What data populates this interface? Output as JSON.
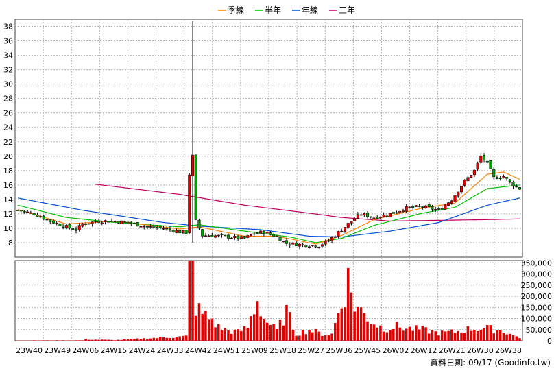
{
  "chart_data": {
    "type": "candlestick-with-volume",
    "legend": [
      {
        "name": "季線",
        "color": "#ff8000"
      },
      {
        "name": "半年",
        "color": "#00c000"
      },
      {
        "name": "年線",
        "color": "#0050d0"
      },
      {
        "name": "三年",
        "color": "#c00060"
      }
    ],
    "legend_position": "top-center",
    "grid": true,
    "price_axis": {
      "ylim": [
        6,
        39
      ],
      "ticks": [
        8,
        10,
        12,
        14,
        16,
        18,
        20,
        22,
        24,
        26,
        28,
        30,
        32,
        34,
        36,
        38
      ],
      "side": "left"
    },
    "volume_axis": {
      "ylim": [
        0,
        360000
      ],
      "ticks": [
        0,
        50000,
        100000,
        150000,
        200000,
        250000,
        300000,
        350000
      ],
      "tick_labels": [
        "0",
        "50,000",
        "100,000",
        "150,000",
        "200,000",
        "250,000",
        "300,000",
        "350,000"
      ],
      "side": "right"
    },
    "x_tick_labels": [
      "23W40",
      "23W49",
      "24W06",
      "24W15",
      "24W24",
      "24W33",
      "24W42",
      "24W51",
      "25W09",
      "25W18",
      "25W27",
      "25W36",
      "25W45",
      "26W02",
      "26W12",
      "26W21",
      "26W30",
      "26W38"
    ],
    "close_anchors": [
      {
        "w": 0,
        "v": 12.5
      },
      {
        "w": 5,
        "v": 12.0
      },
      {
        "w": 10,
        "v": 11.0
      },
      {
        "w": 15,
        "v": 10.2
      },
      {
        "w": 18,
        "v": 9.8
      },
      {
        "w": 20,
        "v": 10.6
      },
      {
        "w": 25,
        "v": 11.0
      },
      {
        "w": 30,
        "v": 11.0
      },
      {
        "w": 35,
        "v": 10.7
      },
      {
        "w": 40,
        "v": 10.2
      },
      {
        "w": 45,
        "v": 10.0
      },
      {
        "w": 50,
        "v": 9.5
      },
      {
        "w": 52,
        "v": 9.4
      },
      {
        "w": 53,
        "v": 17.5
      },
      {
        "w": 54,
        "v": 20.0
      },
      {
        "w": 55,
        "v": 11.0
      },
      {
        "w": 57,
        "v": 9.0
      },
      {
        "w": 60,
        "v": 9.0
      },
      {
        "w": 65,
        "v": 8.8
      },
      {
        "w": 70,
        "v": 8.6
      },
      {
        "w": 73,
        "v": 9.3
      },
      {
        "w": 76,
        "v": 9.5
      },
      {
        "w": 80,
        "v": 8.8
      },
      {
        "w": 83,
        "v": 7.9
      },
      {
        "w": 88,
        "v": 7.7
      },
      {
        "w": 93,
        "v": 7.6
      },
      {
        "w": 96,
        "v": 8.3
      },
      {
        "w": 100,
        "v": 9.8
      },
      {
        "w": 103,
        "v": 11.0
      },
      {
        "w": 106,
        "v": 12.0
      },
      {
        "w": 110,
        "v": 11.5
      },
      {
        "w": 115,
        "v": 12.0
      },
      {
        "w": 120,
        "v": 12.8
      },
      {
        "w": 125,
        "v": 13.0
      },
      {
        "w": 130,
        "v": 12.5
      },
      {
        "w": 134,
        "v": 14.0
      },
      {
        "w": 138,
        "v": 16.5
      },
      {
        "w": 141,
        "v": 18.0
      },
      {
        "w": 143,
        "v": 20.0
      },
      {
        "w": 145,
        "v": 19.0
      },
      {
        "w": 147,
        "v": 17.0
      },
      {
        "w": 150,
        "v": 17.2
      },
      {
        "w": 153,
        "v": 16.0
      },
      {
        "w": 155,
        "v": 15.5
      }
    ],
    "spike": {
      "w": 54,
      "high": 38.7,
      "low": 8.0
    },
    "ma_quarter": [
      [
        0,
        12.6
      ],
      [
        15,
        10.6
      ],
      [
        30,
        11.0
      ],
      [
        50,
        9.9
      ],
      [
        56,
        10.2
      ],
      [
        70,
        8.9
      ],
      [
        80,
        8.9
      ],
      [
        92,
        7.8
      ],
      [
        100,
        9.0
      ],
      [
        110,
        11.2
      ],
      [
        125,
        12.8
      ],
      [
        135,
        13.5
      ],
      [
        145,
        17.5
      ],
      [
        150,
        17.8
      ],
      [
        155,
        16.8
      ]
    ],
    "ma_half": [
      [
        0,
        13.2
      ],
      [
        15,
        11.5
      ],
      [
        30,
        10.8
      ],
      [
        50,
        10.2
      ],
      [
        56,
        10.5
      ],
      [
        70,
        9.6
      ],
      [
        84,
        8.8
      ],
      [
        92,
        8.0
      ],
      [
        100,
        8.6
      ],
      [
        110,
        10.4
      ],
      [
        125,
        12.1
      ],
      [
        135,
        12.9
      ],
      [
        145,
        15.5
      ],
      [
        155,
        16.0
      ]
    ],
    "ma_year": [
      [
        0,
        14.2
      ],
      [
        20,
        12.5
      ],
      [
        45,
        10.8
      ],
      [
        56,
        10.3
      ],
      [
        75,
        9.8
      ],
      [
        90,
        8.9
      ],
      [
        100,
        8.8
      ],
      [
        115,
        9.6
      ],
      [
        130,
        10.8
      ],
      [
        145,
        13.2
      ],
      [
        155,
        14.2
      ]
    ],
    "ma_three_year": [
      [
        24,
        16.1
      ],
      [
        50,
        14.7
      ],
      [
        70,
        13.2
      ],
      [
        90,
        12.1
      ],
      [
        100,
        11.5
      ],
      [
        115,
        11.0
      ],
      [
        130,
        11.1
      ],
      [
        145,
        11.2
      ],
      [
        155,
        11.3
      ]
    ],
    "volume_anchors": [
      {
        "w": 0,
        "v": 1500
      },
      {
        "w": 20,
        "v": 2000
      },
      {
        "w": 21,
        "v": 6000
      },
      {
        "w": 30,
        "v": 3000
      },
      {
        "w": 52,
        "v": 20000
      },
      {
        "w": 53,
        "v": 360000
      },
      {
        "w": 54,
        "v": 360000
      },
      {
        "w": 55,
        "v": 150000
      },
      {
        "w": 57,
        "v": 120000
      },
      {
        "w": 60,
        "v": 95000
      },
      {
        "w": 62,
        "v": 60000
      },
      {
        "w": 65,
        "v": 45000
      },
      {
        "w": 68,
        "v": 40000
      },
      {
        "w": 71,
        "v": 60000
      },
      {
        "w": 74,
        "v": 185000
      },
      {
        "w": 76,
        "v": 100000
      },
      {
        "w": 80,
        "v": 45000
      },
      {
        "w": 83,
        "v": 130000
      },
      {
        "w": 86,
        "v": 30000
      },
      {
        "w": 90,
        "v": 50000
      },
      {
        "w": 94,
        "v": 30000
      },
      {
        "w": 97,
        "v": 30000
      },
      {
        "w": 101,
        "v": 220000
      },
      {
        "w": 102,
        "v": 275000
      },
      {
        "w": 104,
        "v": 160000
      },
      {
        "w": 107,
        "v": 120000
      },
      {
        "w": 110,
        "v": 80000
      },
      {
        "w": 113,
        "v": 55000
      },
      {
        "w": 117,
        "v": 65000
      },
      {
        "w": 120,
        "v": 55000
      },
      {
        "w": 125,
        "v": 50000
      },
      {
        "w": 130,
        "v": 35000
      },
      {
        "w": 135,
        "v": 40000
      },
      {
        "w": 140,
        "v": 55000
      },
      {
        "w": 145,
        "v": 55000
      },
      {
        "w": 150,
        "v": 45000
      },
      {
        "w": 153,
        "v": 25000
      },
      {
        "w": 155,
        "v": 15000
      }
    ],
    "weeks": 156,
    "footer": "資料日期: 09/17 (Goodinfo.tw)"
  }
}
